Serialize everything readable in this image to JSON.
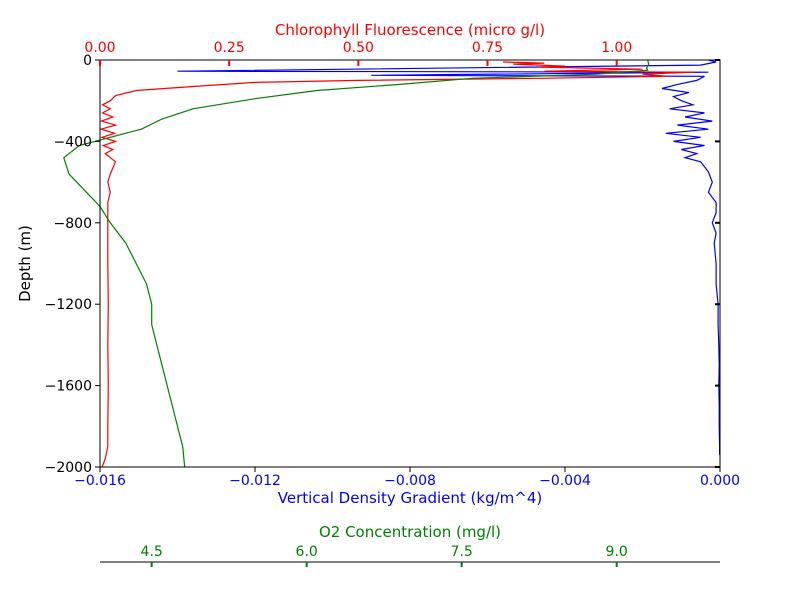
{
  "chart_data": {
    "type": "line",
    "y_axis": {
      "label": "Depth (m)",
      "ticks": [
        0,
        -400,
        -800,
        -1200,
        -1600,
        -2000
      ],
      "tick_labels": [
        "0",
        "−400",
        "−800",
        "−1200",
        "−1600",
        "−2000"
      ],
      "range": [
        -2000,
        0
      ]
    },
    "axes": {
      "density": {
        "label": "Vertical Density Gradient (kg/m^4)",
        "color": "#0000ff",
        "range": [
          -0.016,
          0.0
        ],
        "ticks": [
          -0.016,
          -0.012,
          -0.008,
          -0.004,
          0.0
        ],
        "tick_labels": [
          "−0.016",
          "−0.012",
          "−0.008",
          "−0.004",
          "0.000"
        ],
        "position": "bottom"
      },
      "chlorophyll": {
        "label": "Chlorophyll Fluorescence (micro g/l)",
        "color": "#ff0000",
        "range": [
          0.0,
          1.2
        ],
        "ticks": [
          0.0,
          0.25,
          0.5,
          0.75,
          1.0
        ],
        "tick_labels": [
          "0.00",
          "0.25",
          "0.50",
          "0.75",
          "1.00"
        ],
        "position": "top"
      },
      "oxygen": {
        "label": "O2 Concentration (mg/l)",
        "color": "#008000",
        "range": [
          4.0,
          10.0
        ],
        "ticks": [
          4.5,
          6.0,
          7.5,
          9.0
        ],
        "tick_labels": [
          "4.5",
          "6.0",
          "7.5",
          "9.0"
        ],
        "position": "bottom-offset"
      }
    },
    "series": [
      {
        "axis": "density",
        "color": "#0000ff",
        "points": [
          [
            -0.0003,
            0
          ],
          [
            -0.0001,
            -10
          ],
          [
            -0.0005,
            -25
          ],
          [
            -0.014,
            -55
          ],
          [
            -0.0003,
            -60
          ],
          [
            -0.009,
            -75
          ],
          [
            -0.0004,
            -80
          ],
          [
            -0.0006,
            -100
          ],
          [
            -0.0011,
            -120
          ],
          [
            -0.0015,
            -140
          ],
          [
            -0.0008,
            -160
          ],
          [
            -0.0012,
            -180
          ],
          [
            -0.001,
            -200
          ],
          [
            -0.0007,
            -220
          ],
          [
            -0.0013,
            -240
          ],
          [
            -0.0004,
            -260
          ],
          [
            -0.0009,
            -280
          ],
          [
            -0.0002,
            -300
          ],
          [
            -0.0011,
            -320
          ],
          [
            -0.0003,
            -340
          ],
          [
            -0.0014,
            -360
          ],
          [
            -0.0005,
            -380
          ],
          [
            -0.0012,
            -400
          ],
          [
            -0.0004,
            -420
          ],
          [
            -0.001,
            -440
          ],
          [
            -0.0006,
            -460
          ],
          [
            -0.0009,
            -480
          ],
          [
            -0.0005,
            -500
          ],
          [
            -0.0003,
            -550
          ],
          [
            -0.0002,
            -600
          ],
          [
            -0.0003,
            -650
          ],
          [
            -0.0001,
            -700
          ],
          [
            -0.0001,
            -750
          ],
          [
            -0.0002,
            -800
          ],
          [
            -0.0001,
            -850
          ],
          [
            -0.00015,
            -900
          ],
          [
            -0.0001,
            -1000
          ],
          [
            -0.0001,
            -1100
          ],
          [
            -5e-05,
            -1200
          ],
          [
            -5e-05,
            -1300
          ],
          [
            -3e-05,
            -1400
          ],
          [
            -2e-05,
            -1500
          ],
          [
            -3e-05,
            -1600
          ],
          [
            -2e-05,
            -1700
          ],
          [
            -2e-05,
            -1800
          ],
          [
            -1e-05,
            -1900
          ],
          [
            -1e-05,
            -1940
          ]
        ]
      },
      {
        "axis": "chlorophyll",
        "color": "#ff0000",
        "points": [
          [
            0.78,
            -10
          ],
          [
            0.86,
            -15
          ],
          [
            0.8,
            -20
          ],
          [
            0.9,
            -30
          ],
          [
            0.85,
            -35
          ],
          [
            1.05,
            -45
          ],
          [
            0.86,
            -55
          ],
          [
            1.15,
            -60
          ],
          [
            1.05,
            -70
          ],
          [
            1.1,
            -80
          ],
          [
            0.85,
            -90
          ],
          [
            0.5,
            -100
          ],
          [
            0.3,
            -110
          ],
          [
            0.18,
            -130
          ],
          [
            0.07,
            -150
          ],
          [
            0.03,
            -175
          ],
          [
            0.02,
            -200
          ],
          [
            0.005,
            -220
          ],
          [
            0.02,
            -240
          ],
          [
            0.005,
            -260
          ],
          [
            0.025,
            -280
          ],
          [
            0.003,
            -300
          ],
          [
            0.03,
            -320
          ],
          [
            0.002,
            -340
          ],
          [
            0.028,
            -360
          ],
          [
            0.004,
            -380
          ],
          [
            0.03,
            -400
          ],
          [
            0.006,
            -420
          ],
          [
            0.025,
            -440
          ],
          [
            0.01,
            -460
          ],
          [
            0.02,
            -480
          ],
          [
            0.03,
            -500
          ],
          [
            0.02,
            -560
          ],
          [
            0.015,
            -600
          ],
          [
            0.02,
            -650
          ],
          [
            0.015,
            -700
          ],
          [
            0.015,
            -800
          ],
          [
            0.015,
            -1000
          ],
          [
            0.016,
            -1200
          ],
          [
            0.015,
            -1400
          ],
          [
            0.016,
            -1600
          ],
          [
            0.015,
            -1800
          ],
          [
            0.015,
            -1900
          ],
          [
            0.01,
            -1960
          ],
          [
            0.004,
            -2000
          ]
        ]
      },
      {
        "axis": "oxygen",
        "color": "#008000",
        "points": [
          [
            9.3,
            0
          ],
          [
            9.31,
            -20
          ],
          [
            9.29,
            -40
          ],
          [
            9.3,
            -50
          ],
          [
            8.8,
            -70
          ],
          [
            7.6,
            -90
          ],
          [
            6.9,
            -120
          ],
          [
            6.1,
            -150
          ],
          [
            5.5,
            -190
          ],
          [
            4.9,
            -240
          ],
          [
            4.6,
            -290
          ],
          [
            4.4,
            -340
          ],
          [
            4.1,
            -380
          ],
          [
            3.8,
            -420
          ],
          [
            3.65,
            -480
          ],
          [
            3.7,
            -560
          ],
          [
            3.85,
            -640
          ],
          [
            4.0,
            -720
          ],
          [
            4.1,
            -800
          ],
          [
            4.25,
            -900
          ],
          [
            4.35,
            -1000
          ],
          [
            4.45,
            -1100
          ],
          [
            4.5,
            -1200
          ],
          [
            4.5,
            -1300
          ],
          [
            4.55,
            -1400
          ],
          [
            4.6,
            -1500
          ],
          [
            4.65,
            -1600
          ],
          [
            4.7,
            -1700
          ],
          [
            4.75,
            -1800
          ],
          [
            4.8,
            -1900
          ],
          [
            4.82,
            -2000
          ]
        ]
      }
    ]
  }
}
